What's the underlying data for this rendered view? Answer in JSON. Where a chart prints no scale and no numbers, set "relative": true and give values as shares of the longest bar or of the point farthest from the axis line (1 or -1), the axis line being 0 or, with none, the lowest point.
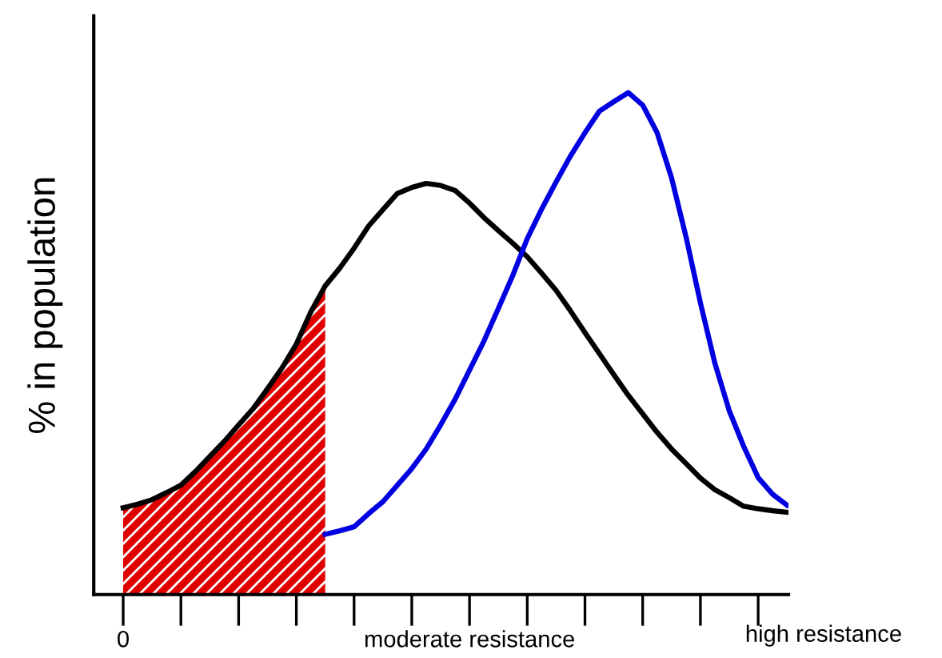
{
  "chart_data": {
    "type": "line",
    "relative": true,
    "ylabel": "% in population",
    "categories": [
      "0",
      null,
      null,
      null,
      null,
      null,
      null,
      null,
      null,
      null,
      null,
      null,
      null,
      null,
      null,
      null,
      null,
      null,
      null,
      null,
      null,
      null,
      null,
      null,
      "moderate resistance",
      null,
      null,
      null,
      null,
      null,
      null,
      null,
      null,
      null,
      null,
      null,
      null,
      null,
      null,
      null,
      null,
      null,
      null,
      null,
      null,
      null,
      null
    ],
    "annotations": [
      "high resistance"
    ],
    "marker": "none",
    "line_style": "solid",
    "series": [
      {
        "type": "area",
        "color": "#e00000",
        "values": [
          0.173,
          0.18,
          0.189,
          0.203,
          0.218,
          0.245,
          0.275,
          0.305,
          0.338,
          0.37,
          0.41,
          0.451,
          0.499,
          0.563,
          0.615,
          null,
          null,
          null,
          null,
          null,
          null,
          null,
          null,
          null,
          null,
          null,
          null,
          null,
          null,
          null,
          null,
          null,
          null,
          null,
          null,
          null,
          null,
          null,
          null,
          null,
          null,
          null,
          null,
          null,
          null,
          null,
          null
        ]
      },
      {
        "color": "#000000",
        "values": [
          0.173,
          0.18,
          0.189,
          0.203,
          0.218,
          0.245,
          0.275,
          0.305,
          0.338,
          0.37,
          0.41,
          0.451,
          0.499,
          0.563,
          0.615,
          0.65,
          0.69,
          0.734,
          0.767,
          0.799,
          0.811,
          0.819,
          0.815,
          0.805,
          0.78,
          0.751,
          0.725,
          0.7,
          0.673,
          0.64,
          0.606,
          0.565,
          0.522,
          0.48,
          0.438,
          0.397,
          0.36,
          0.323,
          0.29,
          0.261,
          0.232,
          0.209,
          0.193,
          0.176,
          0.171,
          0.167,
          0.164
        ]
      },
      {
        "color": "#0000e0",
        "values": [
          null,
          null,
          null,
          null,
          null,
          null,
          null,
          null,
          null,
          null,
          null,
          null,
          null,
          null,
          0.12,
          0.127,
          0.135,
          0.161,
          0.185,
          0.218,
          0.251,
          0.29,
          0.338,
          0.389,
          0.447,
          0.505,
          0.57,
          0.636,
          0.709,
          0.768,
          0.822,
          0.874,
          0.92,
          0.963,
          0.982,
          1.0,
          0.975,
          0.92,
          0.83,
          0.713,
          0.581,
          0.461,
          0.366,
          0.295,
          0.233,
          0.2,
          0.178
        ]
      }
    ]
  }
}
